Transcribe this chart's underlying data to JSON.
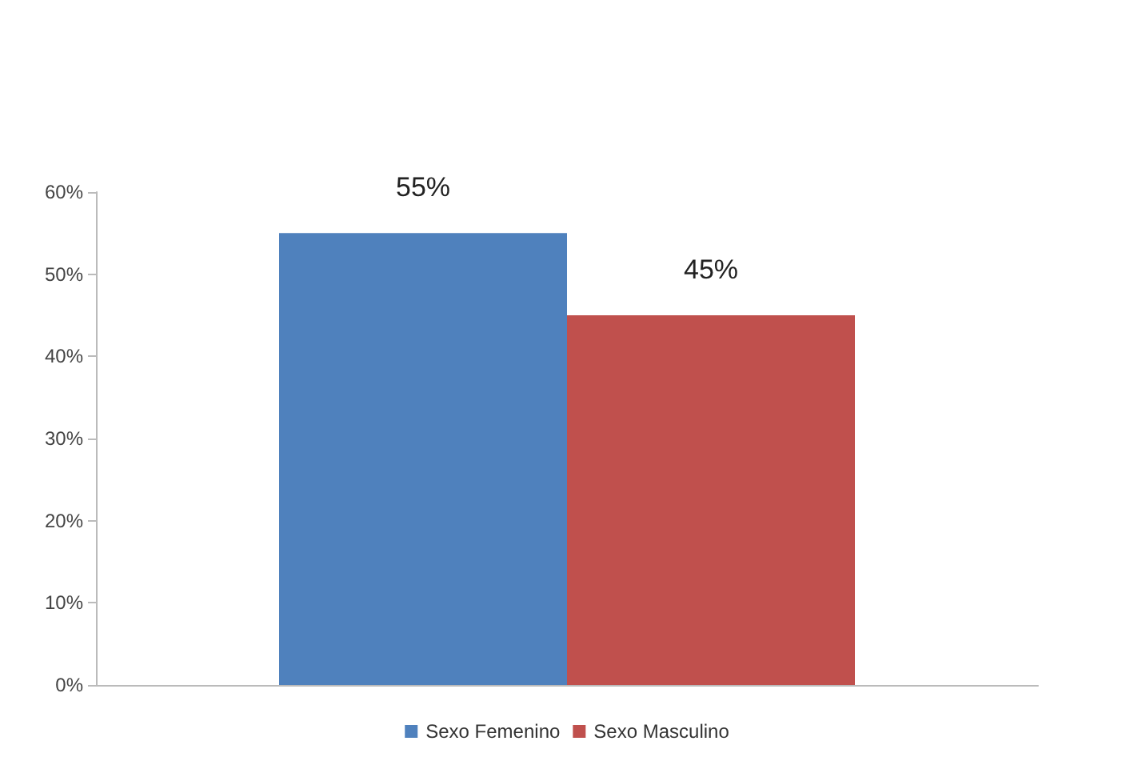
{
  "chart_data": {
    "type": "bar",
    "categories": [
      null
    ],
    "series": [
      {
        "name": "Sexo Femenino",
        "color": "#4f81bd",
        "values": [
          55
        ],
        "value_labels": [
          "55%"
        ]
      },
      {
        "name": "Sexo Masculino",
        "color": "#c0504d",
        "values": [
          45
        ],
        "value_labels": [
          "45%"
        ]
      }
    ],
    "ylim": [
      0,
      60
    ],
    "yticks": [
      {
        "value": 0,
        "label": "0%"
      },
      {
        "value": 10,
        "label": "10%"
      },
      {
        "value": 20,
        "label": "20%"
      },
      {
        "value": 30,
        "label": "30%"
      },
      {
        "value": 40,
        "label": "40%"
      },
      {
        "value": 50,
        "label": "50%"
      },
      {
        "value": 60,
        "label": "60%"
      }
    ],
    "grid": false,
    "legend": "bottom"
  }
}
